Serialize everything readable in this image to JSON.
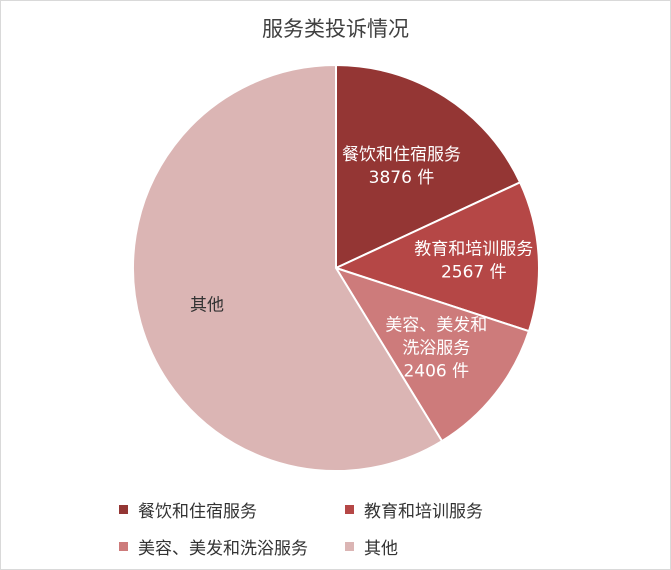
{
  "chart_data": {
    "type": "pie",
    "title": "服务类投诉情况",
    "unit": "件",
    "start_angle_deg": 0,
    "direction": "clockwise",
    "legend_position": "bottom",
    "slices": [
      {
        "name": "餐饮和住宿服务",
        "value": 3876,
        "value_label": "3876 件",
        "color": "#943634",
        "label_color": "#ffffff"
      },
      {
        "name": "教育和培训服务",
        "value": 2567,
        "value_label": "2567 件",
        "color": "#b54746",
        "label_color": "#ffffff"
      },
      {
        "name": "美容、美发和洗浴服务",
        "value": 2406,
        "value_label": "2406 件",
        "color": "#cd7b7b",
        "label_color": "#ffffff"
      },
      {
        "name": "其他",
        "value": 12600,
        "value_label": "",
        "color": "#dbb5b4",
        "label_color": "#333333"
      }
    ]
  }
}
